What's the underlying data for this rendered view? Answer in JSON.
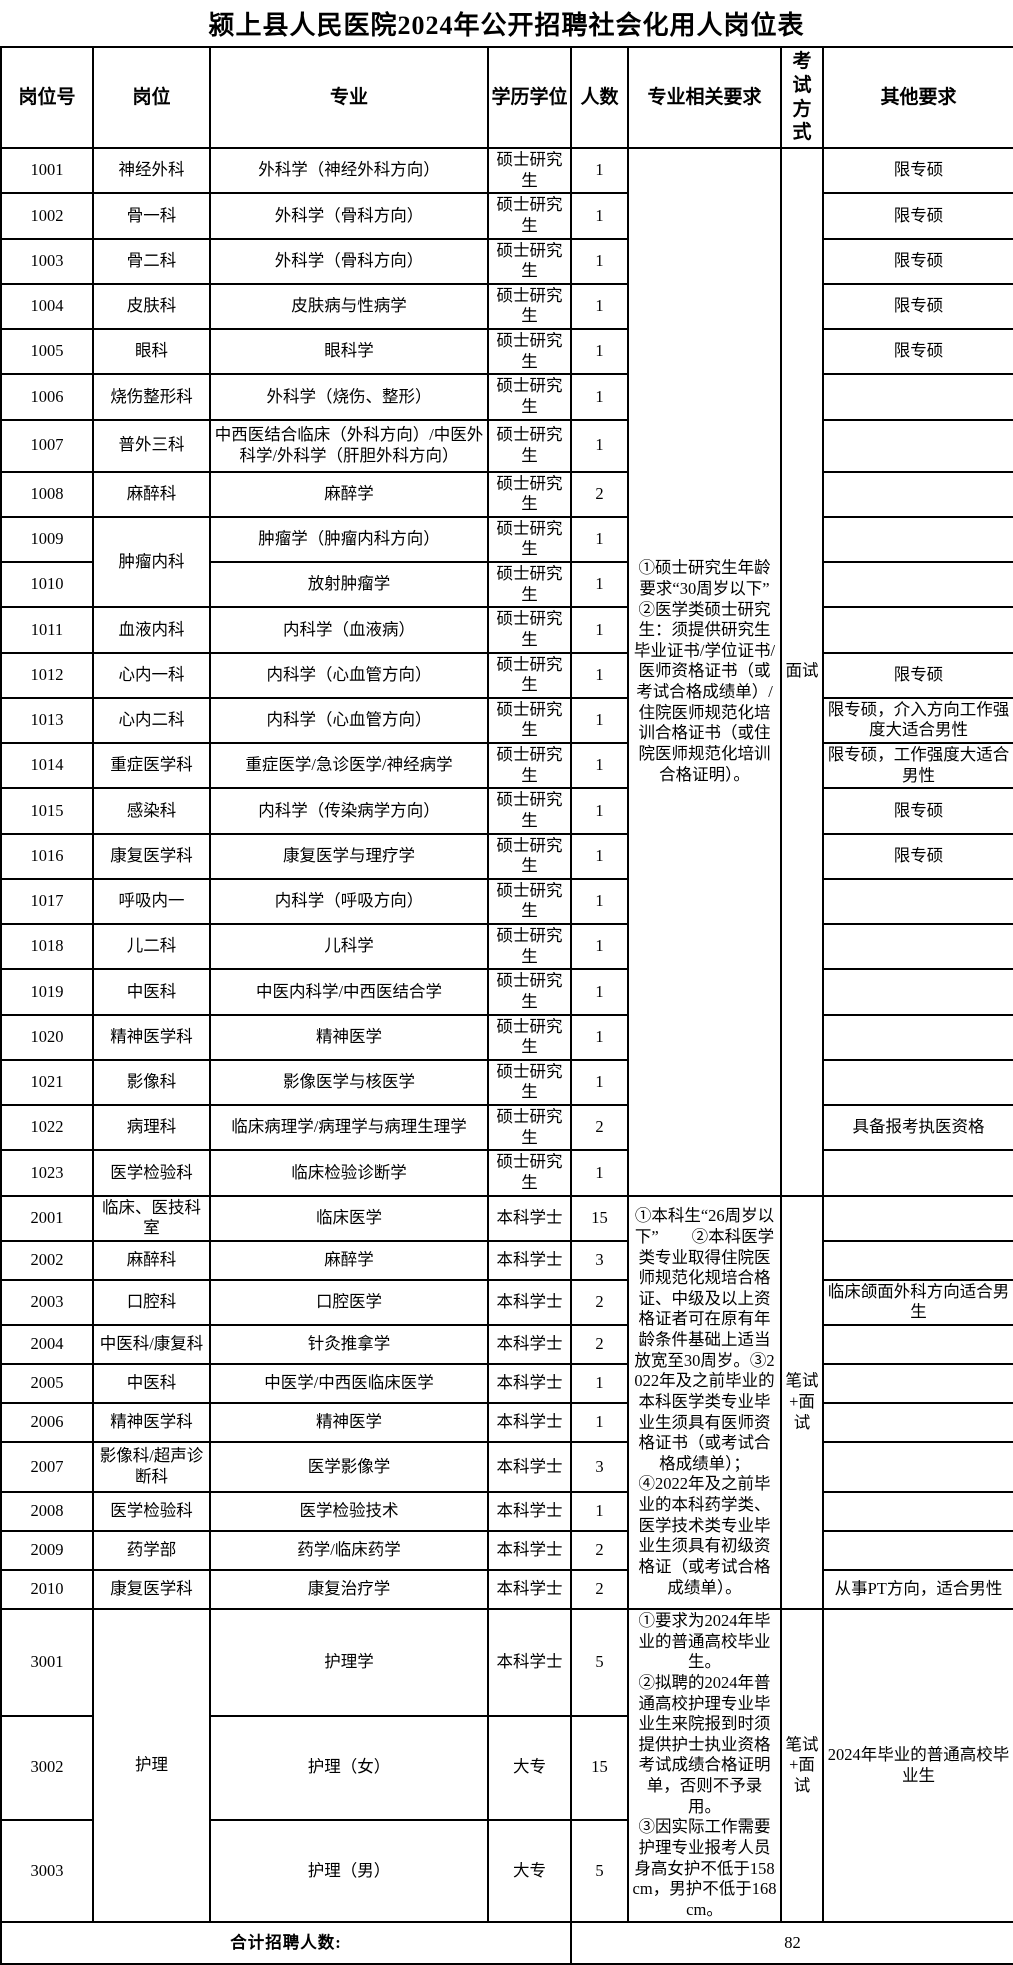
{
  "title": "颍上县人民医院2024年公开招聘社会化用人岗位表",
  "table": {
    "headers": [
      "岗位号",
      "岗位",
      "专业",
      "学历学位",
      "人数",
      "专业相关要求",
      "考试方式",
      "其他要求"
    ],
    "sections": [
      {
        "requirements": "①硕士研究生年龄要求“30周岁以下”\n②医学类硕士研究生：须提供研究生毕业证书/学位证书/医师资格证书（或考试合格成绩单）/住院医师规范化培训合格证书（或住院医师规范化培训合格证明）。",
        "exam_method": "面试",
        "other_merged": null,
        "rows": [
          {
            "id": "1001",
            "post": "神经外科",
            "major": "外科学（神经外科方向）",
            "degree": "硕士研究生",
            "count": "1",
            "other": "限专硕"
          },
          {
            "id": "1002",
            "post": "骨一科",
            "major": "外科学（骨科方向）",
            "degree": "硕士研究生",
            "count": "1",
            "other": "限专硕"
          },
          {
            "id": "1003",
            "post": "骨二科",
            "major": "外科学（骨科方向）",
            "degree": "硕士研究生",
            "count": "1",
            "other": "限专硕"
          },
          {
            "id": "1004",
            "post": "皮肤科",
            "major": "皮肤病与性病学",
            "degree": "硕士研究生",
            "count": "1",
            "other": "限专硕"
          },
          {
            "id": "1005",
            "post": "眼科",
            "major": "眼科学",
            "degree": "硕士研究生",
            "count": "1",
            "other": "限专硕"
          },
          {
            "id": "1006",
            "post": "烧伤整形科",
            "major": "外科学（烧伤、整形）",
            "degree": "硕士研究生",
            "count": "1",
            "other": ""
          },
          {
            "id": "1007",
            "post": "普外三科",
            "major": "中西医结合临床（外科方向）/中医外科学/外科学（肝胆外科方向）",
            "degree": "硕士研究生",
            "count": "1",
            "other": ""
          },
          {
            "id": "1008",
            "post": "麻醉科",
            "major": "麻醉学",
            "degree": "硕士研究生",
            "count": "2",
            "other": ""
          },
          {
            "id": "1009",
            "post": "肿瘤内科",
            "post_rowspan": 2,
            "major": "肿瘤学（肿瘤内科方向）",
            "degree": "硕士研究生",
            "count": "1",
            "other": ""
          },
          {
            "id": "1010",
            "post": null,
            "major": "放射肿瘤学",
            "degree": "硕士研究生",
            "count": "1",
            "other": ""
          },
          {
            "id": "1011",
            "post": "血液内科",
            "major": "内科学（血液病）",
            "degree": "硕士研究生",
            "count": "1",
            "other": ""
          },
          {
            "id": "1012",
            "post": "心内一科",
            "major": "内科学（心血管方向）",
            "degree": "硕士研究生",
            "count": "1",
            "other": "限专硕"
          },
          {
            "id": "1013",
            "post": "心内二科",
            "major": "内科学（心血管方向）",
            "degree": "硕士研究生",
            "count": "1",
            "other": "限专硕，介入方向工作强度大适合男性"
          },
          {
            "id": "1014",
            "post": "重症医学科",
            "major": "重症医学/急诊医学/神经病学",
            "degree": "硕士研究生",
            "count": "1",
            "other": "限专硕，工作强度大适合男性"
          },
          {
            "id": "1015",
            "post": "感染科",
            "major": "内科学（传染病学方向）",
            "degree": "硕士研究生",
            "count": "1",
            "other": "限专硕"
          },
          {
            "id": "1016",
            "post": "康复医学科",
            "major": "康复医学与理疗学",
            "degree": "硕士研究生",
            "count": "1",
            "other": "限专硕"
          },
          {
            "id": "1017",
            "post": "呼吸内一",
            "major": "内科学（呼吸方向）",
            "degree": "硕士研究生",
            "count": "1",
            "other": ""
          },
          {
            "id": "1018",
            "post": "儿二科",
            "major": "儿科学",
            "degree": "硕士研究生",
            "count": "1",
            "other": ""
          },
          {
            "id": "1019",
            "post": "中医科",
            "major": "中医内科学/中西医结合学",
            "degree": "硕士研究生",
            "count": "1",
            "other": ""
          },
          {
            "id": "1020",
            "post": "精神医学科",
            "major": "精神医学",
            "degree": "硕士研究生",
            "count": "1",
            "other": ""
          },
          {
            "id": "1021",
            "post": "影像科",
            "major": "影像医学与核医学",
            "degree": "硕士研究生",
            "count": "1",
            "other": ""
          },
          {
            "id": "1022",
            "post": "病理科",
            "major": "临床病理学/病理学与病理生理学",
            "degree": "硕士研究生",
            "count": "2",
            "other": "具备报考执医资格"
          },
          {
            "id": "1023",
            "post": "医学检验科",
            "major": "临床检验诊断学",
            "degree": "硕士研究生",
            "count": "1",
            "other": ""
          }
        ]
      },
      {
        "requirements": "①本科生“26周岁以下”　　②本科医学类专业取得住院医师规范化规培合格证、中级及以上资格证者可在原有年龄条件基础上适当放宽至30周岁。③2022年及之前毕业的本科医学类专业毕业生须具有医师资格证书（或考试合格成绩单）；\n④2022年及之前毕业的本科药学类、医学技术类专业毕业生须具有初级资格证（或考试合格成绩单）。",
        "exam_method": "笔试+面试",
        "other_merged": null,
        "rows": [
          {
            "id": "2001",
            "post": "临床、医技科室",
            "major": "临床医学",
            "degree": "本科学士",
            "count": "15",
            "other": ""
          },
          {
            "id": "2002",
            "post": "麻醉科",
            "major": "麻醉学",
            "degree": "本科学士",
            "count": "3",
            "other": ""
          },
          {
            "id": "2003",
            "post": "口腔科",
            "major": "口腔医学",
            "degree": "本科学士",
            "count": "2",
            "other": "临床颌面外科方向适合男生"
          },
          {
            "id": "2004",
            "post": "中医科/康复科",
            "major": "针灸推拿学",
            "degree": "本科学士",
            "count": "2",
            "other": ""
          },
          {
            "id": "2005",
            "post": "中医科",
            "major": "中医学/中西医临床医学",
            "degree": "本科学士",
            "count": "1",
            "other": ""
          },
          {
            "id": "2006",
            "post": "精神医学科",
            "major": "精神医学",
            "degree": "本科学士",
            "count": "1",
            "other": ""
          },
          {
            "id": "2007",
            "post": "影像科/超声诊断科",
            "major": "医学影像学",
            "degree": "本科学士",
            "count": "3",
            "other": ""
          },
          {
            "id": "2008",
            "post": "医学检验科",
            "major": "医学检验技术",
            "degree": "本科学士",
            "count": "1",
            "other": ""
          },
          {
            "id": "2009",
            "post": "药学部",
            "major": "药学/临床药学",
            "degree": "本科学士",
            "count": "2",
            "other": ""
          },
          {
            "id": "2010",
            "post": "康复医学科",
            "major": "康复治疗学",
            "degree": "本科学士",
            "count": "2",
            "other": "从事PT方向，适合男性"
          }
        ]
      },
      {
        "requirements": "①要求为2024年毕业的普通高校毕业生。\n②拟聘的2024年普通高校护理专业毕业生来院报到时须提供护士执业资格考试成绩合格证明单，否则不予录用。\n③因实际工作需要护理专业报考人员身高女护不低于158cm，男护不低于168cm。",
        "exam_method": "笔试+面试",
        "other_merged": "2024年毕业的普通高校毕业生",
        "rows": [
          {
            "id": "3001",
            "post": "护理",
            "post_rowspan": 3,
            "major": "护理学",
            "degree": "本科学士",
            "count": "5"
          },
          {
            "id": "3002",
            "major": "护理（女）",
            "degree": "大专",
            "count": "15"
          },
          {
            "id": "3003",
            "major": "护理（男）",
            "degree": "大专",
            "count": "5"
          }
        ]
      }
    ],
    "footer": {
      "label": "合计招聘人数:",
      "total": "82"
    }
  }
}
